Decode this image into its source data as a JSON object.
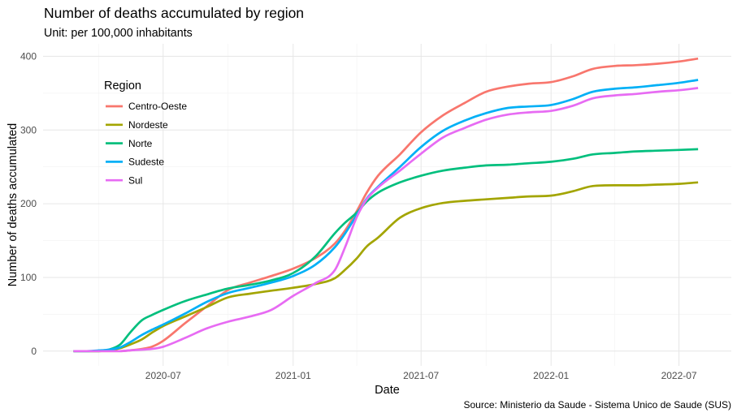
{
  "chart_data": {
    "type": "line",
    "title": "Number of deaths accumulated by region",
    "subtitle": "Unit: per 100,000 inhabitants",
    "xlabel": "Date",
    "ylabel": "Number of deaths accumulated",
    "caption": "Source: Ministerio da Saude - Sistema Unico de Saude (SUS)",
    "legend": {
      "title": "Region",
      "placement": "top-left"
    },
    "grid": true,
    "x_ticks": [
      "2020-07",
      "2021-01",
      "2021-07",
      "2022-01",
      "2022-07"
    ],
    "y_ticks": [
      0,
      100,
      200,
      300,
      400
    ],
    "xlim": [
      "2020-01-13",
      "2022-09-13"
    ],
    "ylim": [
      -20,
      417
    ],
    "x": [
      "2020-02-25",
      "2020-03-15",
      "2020-04-01",
      "2020-04-15",
      "2020-05-01",
      "2020-05-15",
      "2020-06-01",
      "2020-06-15",
      "2020-07-01",
      "2020-08-01",
      "2020-09-01",
      "2020-10-01",
      "2020-11-01",
      "2020-12-01",
      "2021-01-01",
      "2021-02-01",
      "2021-03-01",
      "2021-03-15",
      "2021-04-01",
      "2021-04-15",
      "2021-05-01",
      "2021-06-01",
      "2021-07-01",
      "2021-08-01",
      "2021-09-01",
      "2021-10-01",
      "2021-11-01",
      "2021-12-01",
      "2022-01-01",
      "2022-02-01",
      "2022-03-01",
      "2022-04-01",
      "2022-05-01",
      "2022-06-01",
      "2022-07-01",
      "2022-07-28"
    ],
    "series": [
      {
        "name": "Centro-Oeste",
        "color": "#F8766D",
        "values": [
          0,
          0,
          0,
          0,
          0,
          1,
          3,
          6,
          14,
          38,
          61,
          83,
          93,
          102,
          112,
          126,
          146,
          163,
          190,
          215,
          238,
          267,
          297,
          320,
          337,
          352,
          359,
          363,
          365,
          373,
          383,
          387,
          388,
          390,
          393,
          397
        ]
      },
      {
        "name": "Nordeste",
        "color": "#A3A500",
        "values": [
          0,
          0,
          0,
          1,
          4,
          9,
          16,
          25,
          34,
          47,
          60,
          73,
          78,
          82,
          86,
          91,
          99,
          110,
          126,
          142,
          154,
          181,
          194,
          201,
          204,
          206,
          208,
          210,
          211,
          217,
          224,
          225,
          225,
          226,
          227,
          229
        ]
      },
      {
        "name": "Norte",
        "color": "#00BF7D",
        "values": [
          0,
          0,
          0,
          2,
          9,
          25,
          42,
          49,
          56,
          68,
          77,
          85,
          90,
          96,
          106,
          128,
          160,
          174,
          188,
          203,
          215,
          229,
          238,
          245,
          249,
          252,
          253,
          255,
          257,
          261,
          267,
          269,
          271,
          272,
          273,
          274
        ]
      },
      {
        "name": "Sudeste",
        "color": "#00B0F6",
        "values": [
          0,
          0,
          1,
          2,
          5,
          12,
          22,
          29,
          36,
          51,
          67,
          79,
          86,
          93,
          102,
          117,
          141,
          159,
          185,
          207,
          223,
          250,
          277,
          299,
          313,
          323,
          330,
          332,
          334,
          342,
          352,
          356,
          358,
          361,
          364,
          368
        ]
      },
      {
        "name": "Sul",
        "color": "#E76BF3",
        "values": [
          0,
          0,
          0,
          0,
          0,
          1,
          2,
          3,
          6,
          18,
          31,
          40,
          47,
          56,
          75,
          92,
          110,
          140,
          182,
          206,
          222,
          245,
          268,
          290,
          303,
          314,
          321,
          324,
          326,
          333,
          343,
          347,
          349,
          352,
          354,
          357
        ]
      }
    ]
  }
}
